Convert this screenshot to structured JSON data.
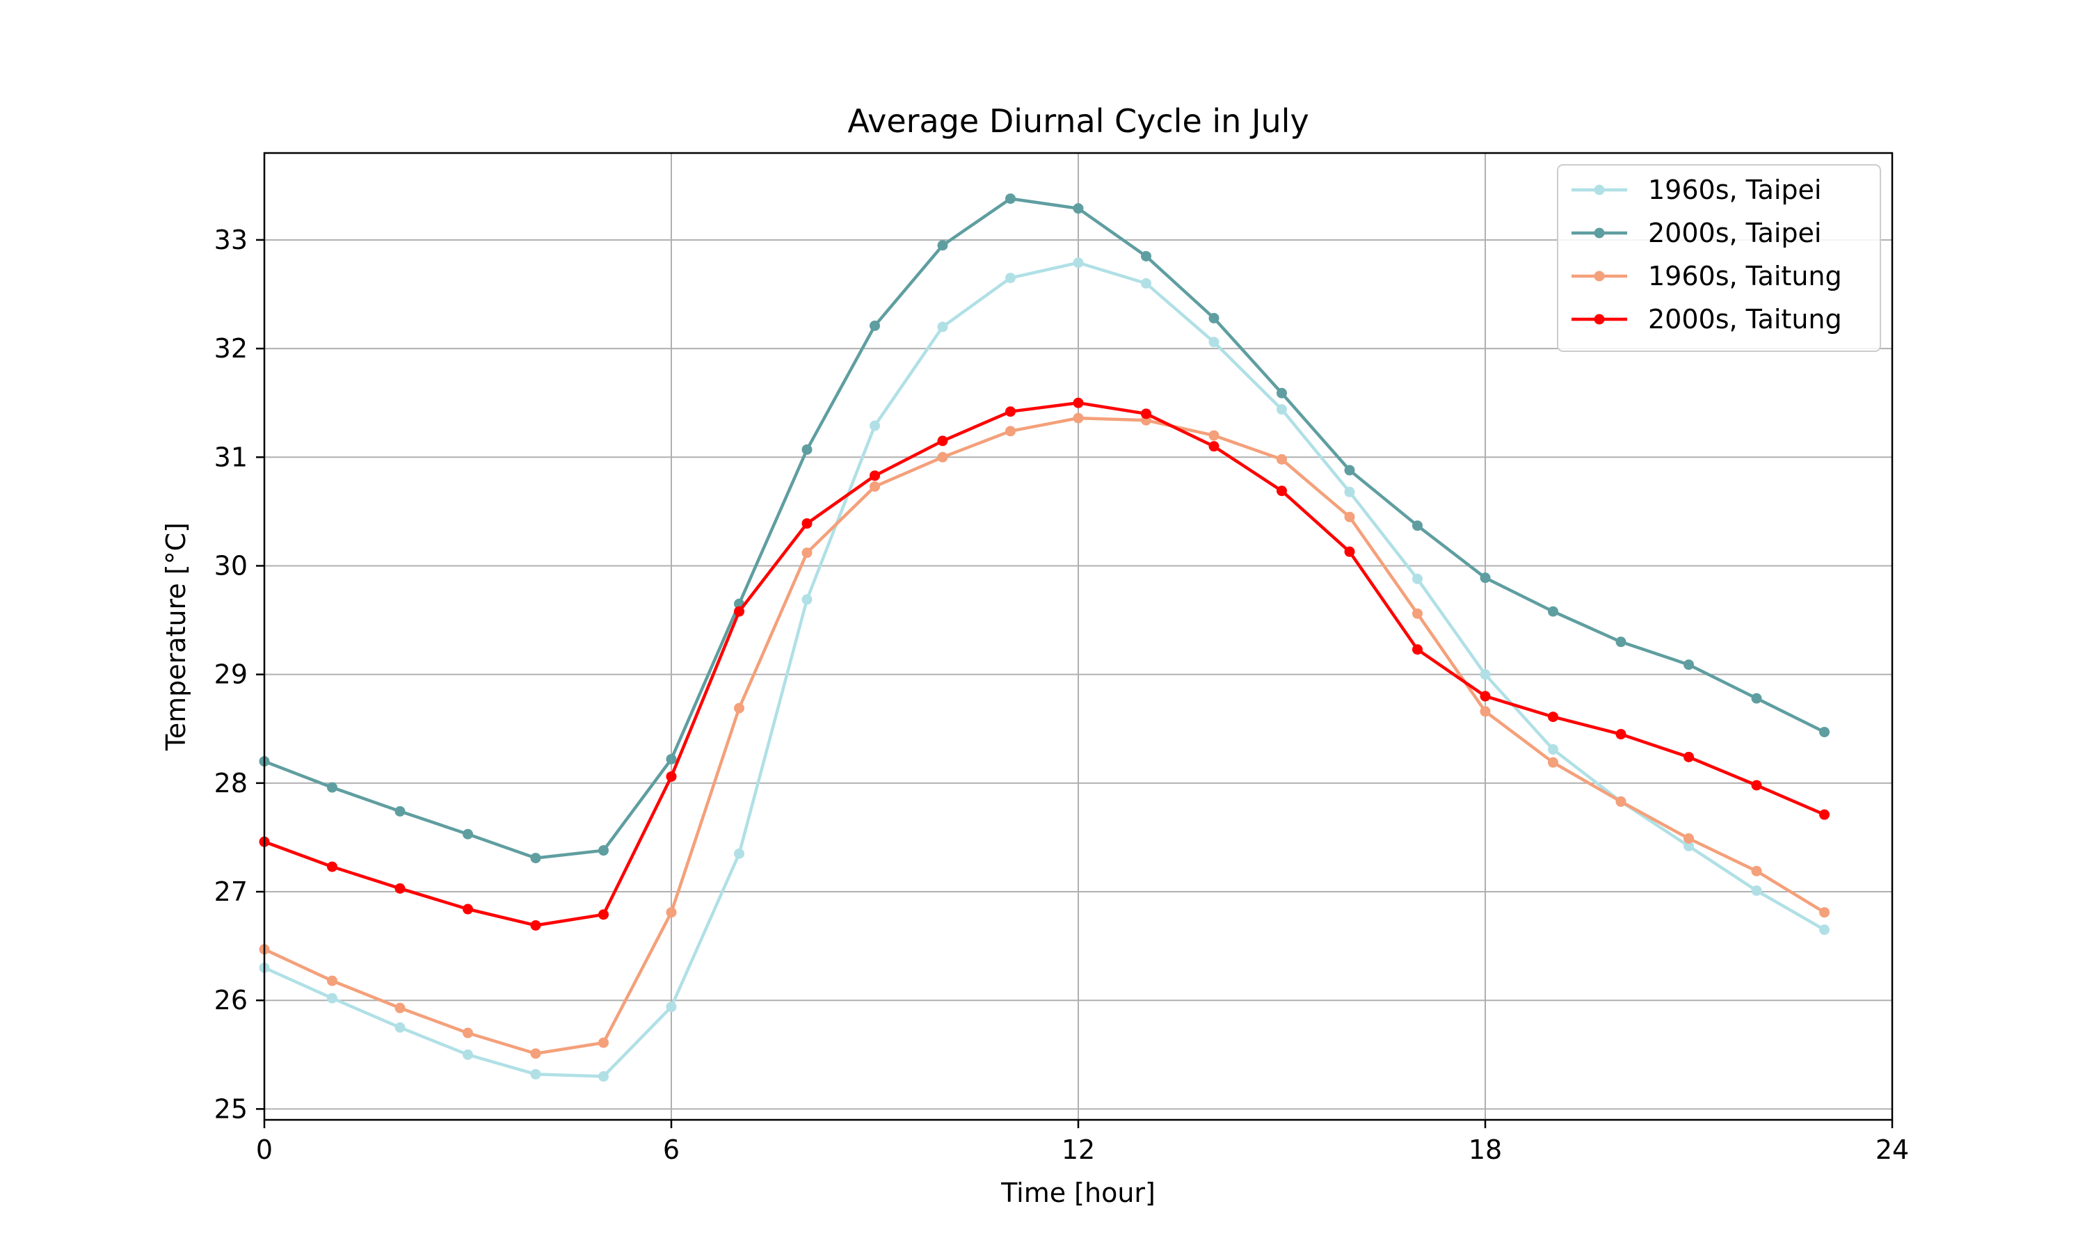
{
  "chart_data": {
    "type": "line",
    "title": "Average Diurnal Cycle in July",
    "xlabel": "Time [hour]",
    "ylabel": "Temperature [°C]",
    "xlim": [
      0,
      24
    ],
    "ylim": [
      24.9,
      33.8
    ],
    "xticks": [
      0,
      6,
      12,
      18,
      24
    ],
    "yticks": [
      25,
      26,
      27,
      28,
      29,
      30,
      31,
      32,
      33
    ],
    "grid": true,
    "legend_position": "top-right",
    "x": [
      0,
      1,
      2,
      3,
      4,
      5,
      6,
      7,
      8,
      9,
      10,
      11,
      12,
      13,
      14,
      15,
      16,
      17,
      18,
      19,
      20,
      21,
      22,
      23
    ],
    "series": [
      {
        "name": "1960s, Taipei",
        "color": "#b0e0e6",
        "values": [
          26.3,
          26.02,
          25.75,
          25.5,
          25.32,
          25.3,
          25.94,
          27.35,
          29.69,
          31.29,
          32.2,
          32.65,
          32.79,
          32.6,
          32.06,
          31.44,
          30.68,
          29.88,
          29.0,
          28.31,
          27.83,
          27.42,
          27.01,
          26.65
        ]
      },
      {
        "name": "2000s, Taipei",
        "color": "#5f9ea0",
        "values": [
          28.2,
          27.96,
          27.74,
          27.53,
          27.31,
          27.38,
          28.22,
          29.65,
          31.07,
          32.21,
          32.95,
          33.38,
          33.29,
          32.85,
          32.28,
          31.59,
          30.88,
          30.37,
          29.89,
          29.58,
          29.3,
          29.09,
          28.78,
          28.47
        ]
      },
      {
        "name": "1960s, Taitung",
        "color": "#f4a07a",
        "values": [
          26.47,
          26.18,
          25.93,
          25.7,
          25.51,
          25.61,
          26.81,
          28.69,
          30.12,
          30.73,
          31.0,
          31.24,
          31.36,
          31.34,
          31.2,
          30.98,
          30.45,
          29.56,
          28.66,
          28.19,
          27.83,
          27.49,
          27.19,
          26.81
        ]
      },
      {
        "name": "2000s, Taitung",
        "color": "#ff0000",
        "values": [
          27.46,
          27.23,
          27.03,
          26.84,
          26.69,
          26.79,
          28.06,
          29.58,
          30.39,
          30.83,
          31.15,
          31.42,
          31.5,
          31.4,
          31.1,
          30.69,
          30.13,
          29.23,
          28.8,
          28.61,
          28.45,
          28.24,
          27.98,
          27.71
        ]
      }
    ]
  }
}
